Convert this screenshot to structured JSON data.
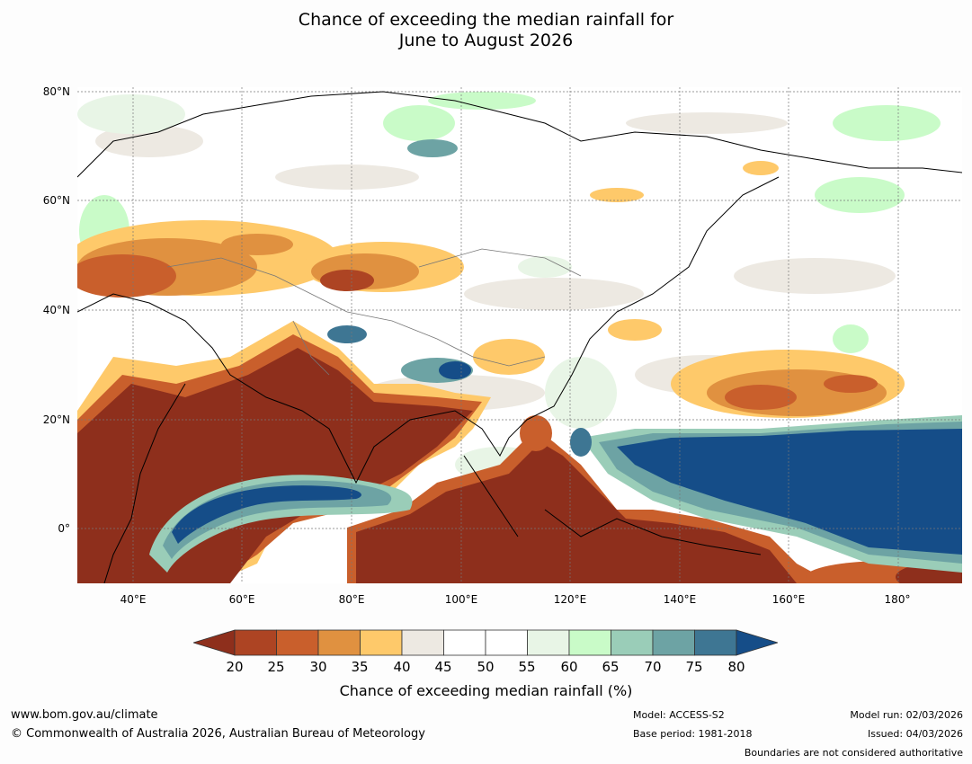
{
  "title": {
    "line1": "Chance of exceeding the median rainfall for",
    "line2": "June to August 2026"
  },
  "map": {
    "lat_labels": [
      "80°N",
      "60°N",
      "40°N",
      "20°N",
      "0°"
    ],
    "lon_labels": [
      "40°E",
      "60°E",
      "80°E",
      "100°E",
      "120°E",
      "140°E",
      "160°E",
      "180°"
    ]
  },
  "legend": {
    "ticks": [
      "20",
      "25",
      "30",
      "35",
      "40",
      "45",
      "50",
      "55",
      "60",
      "65",
      "70",
      "75",
      "80"
    ],
    "colors": [
      "#8e2f1c",
      "#ad4423",
      "#c95f2c",
      "#e09140",
      "#fec96a",
      "#ede9e2",
      "#ffffff",
      "#ffffff",
      "#e8f5e6",
      "#c9fbc8",
      "#9acdb8",
      "#6da3a4",
      "#3e7693",
      "#154d88"
    ],
    "label": "Chance of exceeding median rainfall (%)"
  },
  "footer": {
    "url": "www.bom.gov.au/climate",
    "copyright": "© Commonwealth of Australia 2026, Australian Bureau of Meteorology",
    "model": "Model: ACCESS-S2",
    "base_period": "Base period: 1981-2018",
    "model_run": "Model run: 02/03/2026",
    "issued": "Issued: 04/03/2026",
    "disclaimer": "Boundaries are not considered authoritative"
  }
}
